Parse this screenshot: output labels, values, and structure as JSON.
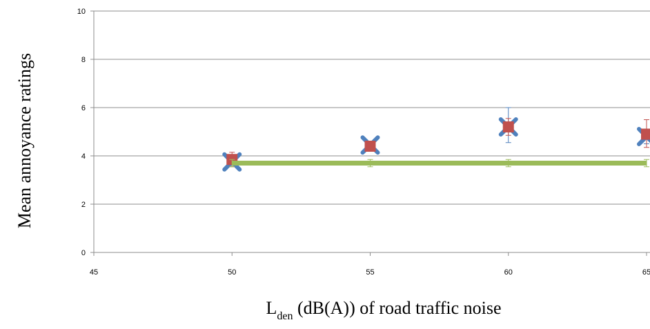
{
  "chart_data": {
    "type": "scatter",
    "xlabel_main": "L",
    "xlabel_sub": "den",
    "xlabel_rest": " (dB(A)) of road traffic noise",
    "ylabel": "Mean annoyance ratings",
    "xlim": [
      45,
      65
    ],
    "ylim": [
      0,
      10
    ],
    "x_ticks": [
      "45",
      "50",
      "55",
      "60",
      "65"
    ],
    "y_ticks": [
      "0",
      "2",
      "4",
      "6",
      "8",
      "10"
    ],
    "grid": true,
    "legend": "none",
    "series": [
      {
        "marker": "x",
        "color": "#4f81bd",
        "points": [
          {
            "x": 50,
            "y": 3.75,
            "err_low": 3.6,
            "err_high": 3.95
          },
          {
            "x": 55,
            "y": 4.45,
            "err_low": 4.3,
            "err_high": 4.6
          },
          {
            "x": 60,
            "y": 5.2,
            "err_low": 4.55,
            "err_high": 6.0
          },
          {
            "x": 65,
            "y": 4.8,
            "err_low": 4.5,
            "err_high": 5.1
          }
        ]
      },
      {
        "marker": "square",
        "color": "#c0504d",
        "points": [
          {
            "x": 50,
            "y": 3.85,
            "err_low": 3.55,
            "err_high": 4.15
          },
          {
            "x": 55,
            "y": 4.4,
            "err_low": 4.2,
            "err_high": 4.6
          },
          {
            "x": 60,
            "y": 5.2,
            "err_low": 4.85,
            "err_high": 5.55
          },
          {
            "x": 65,
            "y": 4.9,
            "err_low": 4.35,
            "err_high": 5.5
          }
        ]
      },
      {
        "marker": "line",
        "color": "#9bbb59",
        "points": [
          {
            "x": 50,
            "y": 3.7,
            "err_low": 3.55,
            "err_high": 3.85
          },
          {
            "x": 55,
            "y": 3.7,
            "err_low": 3.55,
            "err_high": 3.85
          },
          {
            "x": 60,
            "y": 3.7,
            "err_low": 3.55,
            "err_high": 3.85
          },
          {
            "x": 65,
            "y": 3.7,
            "err_low": 3.55,
            "err_high": 3.85
          }
        ]
      }
    ]
  }
}
